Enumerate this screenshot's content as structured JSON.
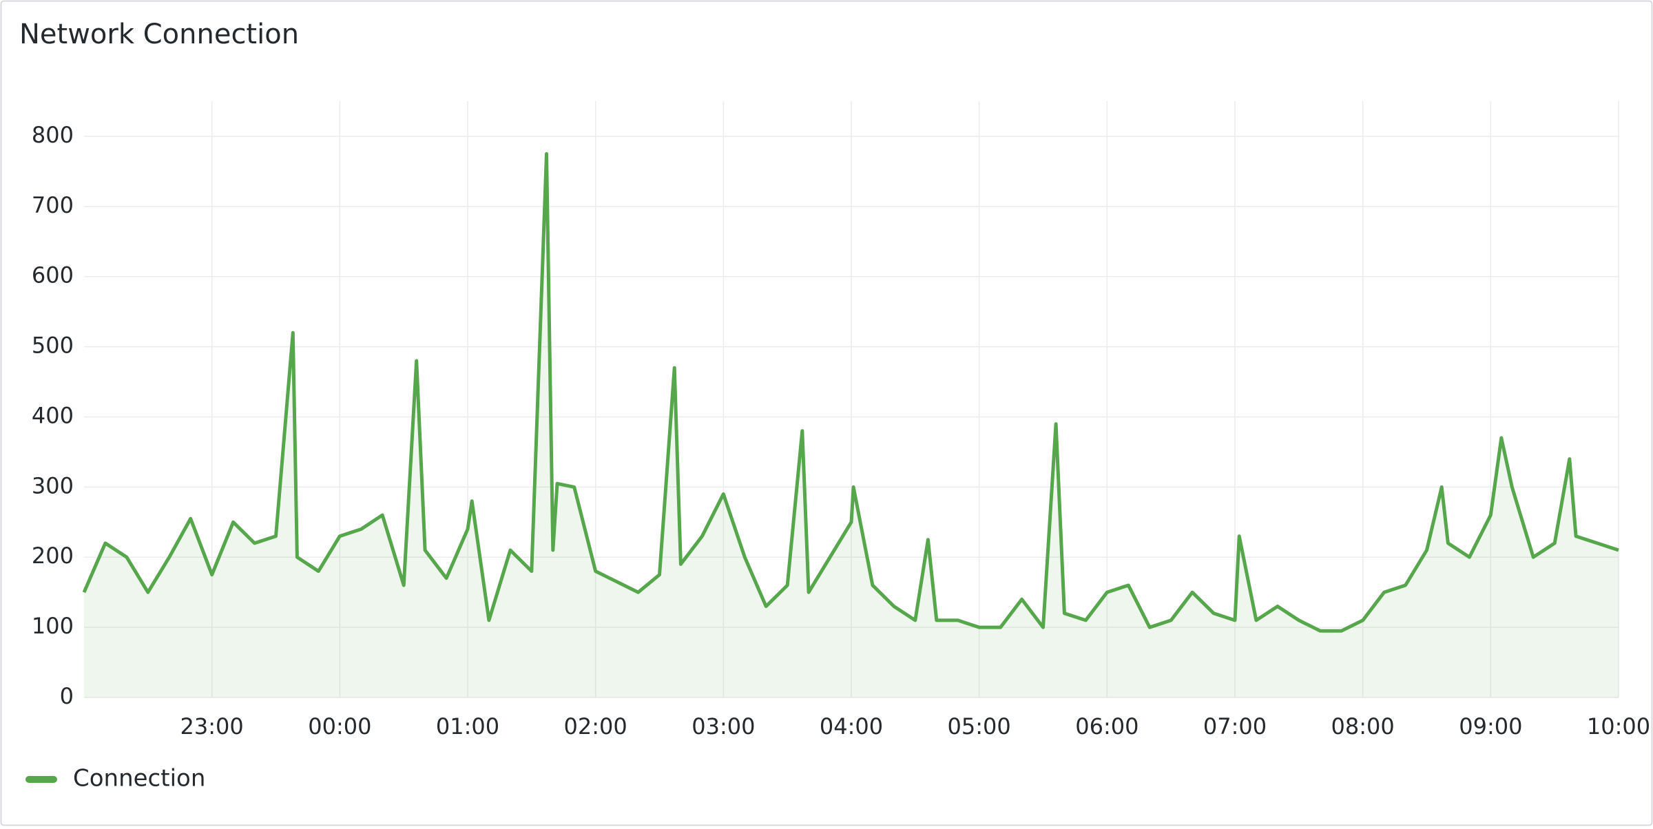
{
  "chart_data": {
    "type": "line",
    "title": "Network Connection",
    "x": [
      "22:00",
      "22:10",
      "22:20",
      "22:30",
      "22:40",
      "22:50",
      "23:00",
      "23:10",
      "23:20",
      "23:30",
      "23:38",
      "23:40",
      "23:50",
      "00:00",
      "00:10",
      "00:20",
      "00:30",
      "00:36",
      "00:40",
      "00:50",
      "01:00",
      "01:02",
      "01:10",
      "01:20",
      "01:30",
      "01:37",
      "01:40",
      "01:42",
      "01:50",
      "02:00",
      "02:10",
      "02:20",
      "02:30",
      "02:37",
      "02:40",
      "02:50",
      "03:00",
      "03:10",
      "03:20",
      "03:30",
      "03:37",
      "03:40",
      "03:50",
      "04:00",
      "04:01",
      "04:10",
      "04:20",
      "04:30",
      "04:36",
      "04:40",
      "04:50",
      "05:00",
      "05:10",
      "05:20",
      "05:30",
      "05:36",
      "05:40",
      "05:50",
      "06:00",
      "06:10",
      "06:20",
      "06:30",
      "06:40",
      "06:50",
      "07:00",
      "07:02",
      "07:10",
      "07:20",
      "07:30",
      "07:40",
      "07:50",
      "08:00",
      "08:10",
      "08:20",
      "08:30",
      "08:37",
      "08:40",
      "08:50",
      "09:00",
      "09:05",
      "09:10",
      "09:20",
      "09:30",
      "09:37",
      "09:40",
      "09:50",
      "10:00"
    ],
    "series": [
      {
        "name": "Connection",
        "color": "#56a64b",
        "values": [
          150,
          220,
          200,
          150,
          200,
          255,
          175,
          250,
          220,
          230,
          520,
          200,
          180,
          230,
          240,
          260,
          160,
          480,
          210,
          170,
          240,
          280,
          110,
          210,
          180,
          775,
          210,
          305,
          300,
          180,
          165,
          150,
          175,
          470,
          190,
          230,
          290,
          200,
          130,
          160,
          380,
          150,
          200,
          250,
          300,
          160,
          130,
          110,
          225,
          110,
          110,
          100,
          100,
          140,
          100,
          390,
          120,
          110,
          150,
          160,
          100,
          110,
          150,
          120,
          110,
          230,
          110,
          130,
          110,
          95,
          95,
          110,
          150,
          160,
          210,
          300,
          220,
          200,
          260,
          370,
          300,
          200,
          220,
          340,
          230,
          220,
          210
        ]
      }
    ],
    "xlim": [
      "22:00",
      "10:00"
    ],
    "xticks": [
      {
        "value": "23:00",
        "label": "23:00"
      },
      {
        "value": "00:00",
        "label": "00:00"
      },
      {
        "value": "01:00",
        "label": "01:00"
      },
      {
        "value": "02:00",
        "label": "02:00"
      },
      {
        "value": "03:00",
        "label": "03:00"
      },
      {
        "value": "04:00",
        "label": "04:00"
      },
      {
        "value": "05:00",
        "label": "05:00"
      },
      {
        "value": "06:00",
        "label": "06:00"
      },
      {
        "value": "07:00",
        "label": "07:00"
      },
      {
        "value": "08:00",
        "label": "08:00"
      },
      {
        "value": "09:00",
        "label": "09:00"
      },
      {
        "value": "10:00",
        "label": "10:00"
      }
    ],
    "ylim": [
      0,
      850
    ],
    "yticks": [
      0,
      100,
      200,
      300,
      400,
      500,
      600,
      700,
      800
    ],
    "grid": true,
    "legend": "bottom-left"
  }
}
